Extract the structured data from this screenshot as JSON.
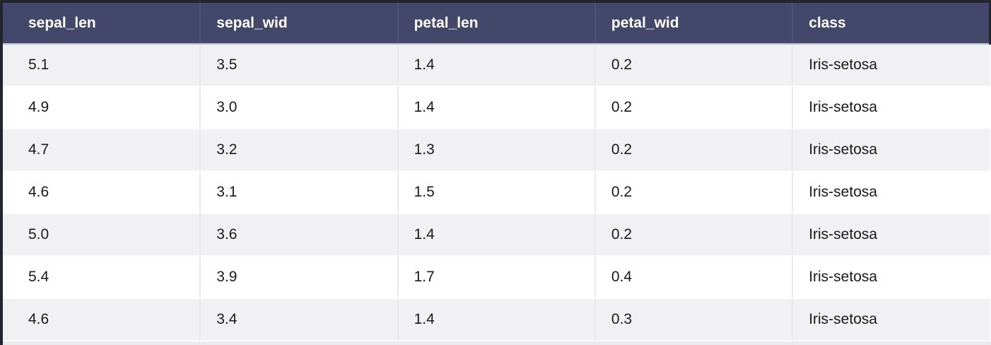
{
  "table": {
    "columns": [
      "sepal_len",
      "sepal_wid",
      "petal_len",
      "petal_wid",
      "class"
    ],
    "rows": [
      [
        "5.1",
        "3.5",
        "1.4",
        "0.2",
        "Iris-setosa"
      ],
      [
        "4.9",
        "3.0",
        "1.4",
        "0.2",
        "Iris-setosa"
      ],
      [
        "4.7",
        "3.2",
        "1.3",
        "0.2",
        "Iris-setosa"
      ],
      [
        "4.6",
        "3.1",
        "1.5",
        "0.2",
        "Iris-setosa"
      ],
      [
        "5.0",
        "3.6",
        "1.4",
        "0.2",
        "Iris-setosa"
      ],
      [
        "5.4",
        "3.9",
        "1.7",
        "0.4",
        "Iris-setosa"
      ],
      [
        "4.6",
        "3.4",
        "1.4",
        "0.3",
        "Iris-setosa"
      ]
    ]
  },
  "colors": {
    "header_bg": "#434769",
    "header_text": "#ffffff",
    "header_separator": "#4e5276",
    "header_divider": "#b9bbce",
    "frame": "#23252e",
    "row_alt": "#f1f1f3",
    "row_base": "#ffffff",
    "bottom_strip": "#ebebee"
  }
}
